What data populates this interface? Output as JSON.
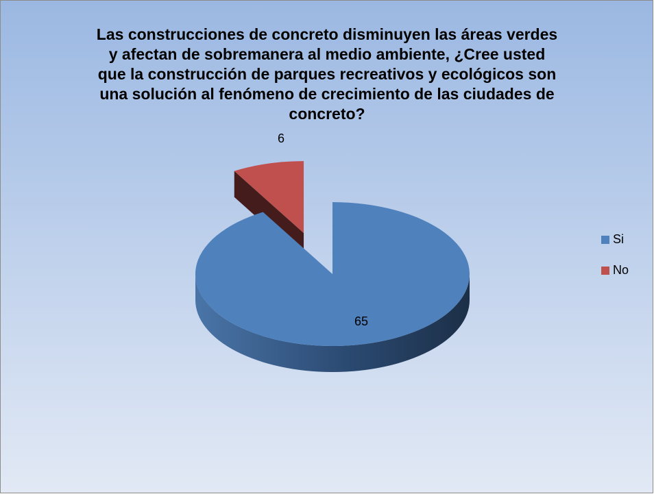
{
  "chart_data": {
    "type": "pie",
    "title": "Las construcciones de concreto disminuyen las áreas verdes y afectan de sobremanera al medio ambiente, ¿Cree usted que la construcción de parques recreativos y ecológicos son una solución al fenómeno de crecimiento de las ciudades de concreto?",
    "categories": [
      "Si",
      "No"
    ],
    "values": [
      65,
      6
    ],
    "colors": [
      "#4f81bd",
      "#c0504d"
    ],
    "legend": "right"
  }
}
